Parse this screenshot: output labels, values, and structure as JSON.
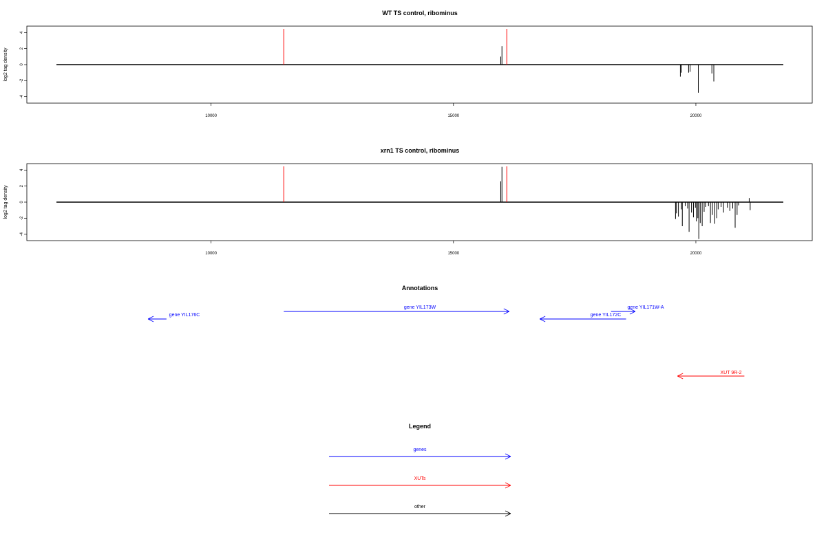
{
  "chart_data": [
    {
      "type": "bar",
      "title": "WT TS control, ribominus",
      "ylabel": "log2 tag density",
      "xlabel": "",
      "xlim": [
        6200,
        22400
      ],
      "ylim": [
        -4.8,
        4.8
      ],
      "xticks": [
        10000,
        15000,
        20000
      ],
      "yticks": [
        4,
        2,
        0,
        -2,
        -4
      ],
      "markers": [
        11500,
        16100
      ],
      "bars": [
        {
          "x": 15975,
          "y": 1.0
        },
        {
          "x": 16000,
          "y": 2.3
        },
        {
          "x": 19680,
          "y": -1.5
        },
        {
          "x": 19700,
          "y": -1.0
        },
        {
          "x": 19850,
          "y": -1.0
        },
        {
          "x": 19880,
          "y": -0.9
        },
        {
          "x": 20050,
          "y": -3.5
        },
        {
          "x": 20330,
          "y": -1.1
        },
        {
          "x": 20370,
          "y": -2.1
        }
      ]
    },
    {
      "type": "bar",
      "title": "xrn1 TS control, ribominus",
      "ylabel": "log2 tag density",
      "xlabel": "",
      "xlim": [
        6200,
        22400
      ],
      "ylim": [
        -4.8,
        4.8
      ],
      "xticks": [
        10000,
        15000,
        20000
      ],
      "yticks": [
        4,
        2,
        0,
        -2,
        -4
      ],
      "markers": [
        11500,
        16100
      ],
      "bars": [
        {
          "x": 15975,
          "y": 2.6
        },
        {
          "x": 16000,
          "y": 4.4
        },
        {
          "x": 19580,
          "y": -2.1
        },
        {
          "x": 19600,
          "y": -1.4
        },
        {
          "x": 19640,
          "y": -1.8
        },
        {
          "x": 19700,
          "y": -0.9
        },
        {
          "x": 19720,
          "y": -3.0
        },
        {
          "x": 19780,
          "y": -0.5
        },
        {
          "x": 19830,
          "y": -0.8
        },
        {
          "x": 19860,
          "y": -3.7
        },
        {
          "x": 19910,
          "y": -1.3
        },
        {
          "x": 19950,
          "y": -1.9
        },
        {
          "x": 19990,
          "y": -0.7
        },
        {
          "x": 20010,
          "y": -2.4
        },
        {
          "x": 20040,
          "y": -2.0
        },
        {
          "x": 20060,
          "y": -4.6
        },
        {
          "x": 20090,
          "y": -2.6
        },
        {
          "x": 20130,
          "y": -3.0
        },
        {
          "x": 20170,
          "y": -1.2
        },
        {
          "x": 20200,
          "y": -0.6
        },
        {
          "x": 20260,
          "y": -0.5
        },
        {
          "x": 20300,
          "y": -2.6
        },
        {
          "x": 20340,
          "y": -1.6
        },
        {
          "x": 20390,
          "y": -2.7
        },
        {
          "x": 20430,
          "y": -2.0
        },
        {
          "x": 20460,
          "y": -0.9
        },
        {
          "x": 20520,
          "y": -0.6
        },
        {
          "x": 20570,
          "y": -1.3
        },
        {
          "x": 20650,
          "y": -0.7
        },
        {
          "x": 20700,
          "y": -1.1
        },
        {
          "x": 20760,
          "y": -0.8
        },
        {
          "x": 20810,
          "y": -3.2
        },
        {
          "x": 20850,
          "y": -1.6
        },
        {
          "x": 20880,
          "y": -0.4
        },
        {
          "x": 21100,
          "y": 0.5
        },
        {
          "x": 21120,
          "y": -1.0
        }
      ]
    }
  ],
  "annotations": {
    "title": "Annotations",
    "features": [
      {
        "label": "gene YIL176C",
        "start": 9080,
        "end": 8700,
        "color": "#0000ff"
      },
      {
        "label": "gene YIL173W",
        "start": 11500,
        "end": 16150,
        "color": "#0000ff"
      },
      {
        "label": "gene YIL172C",
        "start": 18560,
        "end": 16780,
        "color": "#0000ff"
      },
      {
        "label": "gene YIL171W-A",
        "start": 18250,
        "end": 18750,
        "color": "#0000ff"
      },
      {
        "label": "XUT 9R-2",
        "start": 21000,
        "end": 19620,
        "color": "#ff0000"
      }
    ]
  },
  "legend": {
    "title": "Legend",
    "items": [
      {
        "label": "genes",
        "color": "#0000ff"
      },
      {
        "label": "XUTs",
        "color": "#ff0000"
      },
      {
        "label": "other",
        "color": "#000000"
      }
    ]
  },
  "colors": {
    "marker": "#ff0000",
    "axis": "#000000"
  }
}
